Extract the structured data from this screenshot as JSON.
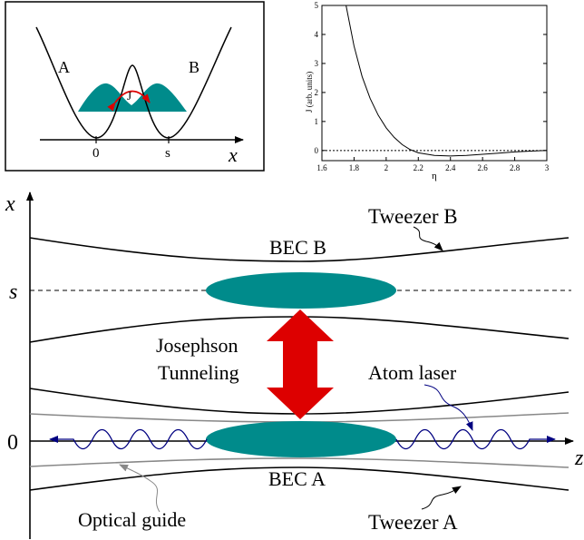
{
  "inset_well": {
    "label_a": "A",
    "label_b": "B",
    "label_j": "J",
    "tick_0": "0",
    "tick_s": "s",
    "axis_label": "x"
  },
  "inset_plot": {
    "ylabel": "J (arb. units)",
    "xlabel": "η",
    "xticks": [
      "1.6",
      "1.8",
      "2",
      "2.2",
      "2.4",
      "2.6",
      "2.8",
      "3"
    ],
    "yticks": [
      "0",
      "1",
      "2",
      "3",
      "4",
      "5"
    ]
  },
  "main": {
    "axis_x": "x",
    "axis_z": "z",
    "mark_s": "s",
    "mark_0": "0",
    "tweezer_b": "Tweezer B",
    "tweezer_a": "Tweezer A",
    "bec_b": "BEC B",
    "bec_a": "BEC A",
    "josephson_1": "Josephson",
    "josephson_2": "Tunneling",
    "atom_laser": "Atom laser",
    "optical_guide": "Optical guide",
    "colors": {
      "bec": "#008b8b",
      "arrow": "#dd0000",
      "atom_laser": "#000080",
      "guide": "#888888",
      "josephson_text": "#dd0000"
    }
  },
  "chart_data": {
    "type": "line",
    "xlabel": "η",
    "ylabel": "J (arb. units)",
    "xlim": [
      1.6,
      3.0
    ],
    "ylim": [
      0,
      5
    ],
    "series": [
      {
        "x": [
          1.75,
          1.8,
          1.85,
          1.9,
          1.95,
          2.0,
          2.05,
          2.1,
          2.15,
          2.2,
          2.3,
          2.4,
          2.5,
          2.6,
          2.7,
          2.8,
          2.9,
          3.0
        ],
        "y": [
          5.0,
          3.6,
          2.55,
          1.8,
          1.22,
          0.78,
          0.45,
          0.2,
          0.03,
          -0.08,
          -0.17,
          -0.19,
          -0.17,
          -0.13,
          -0.09,
          -0.05,
          -0.02,
          0.0
        ]
      }
    ],
    "reference_line": 0
  }
}
